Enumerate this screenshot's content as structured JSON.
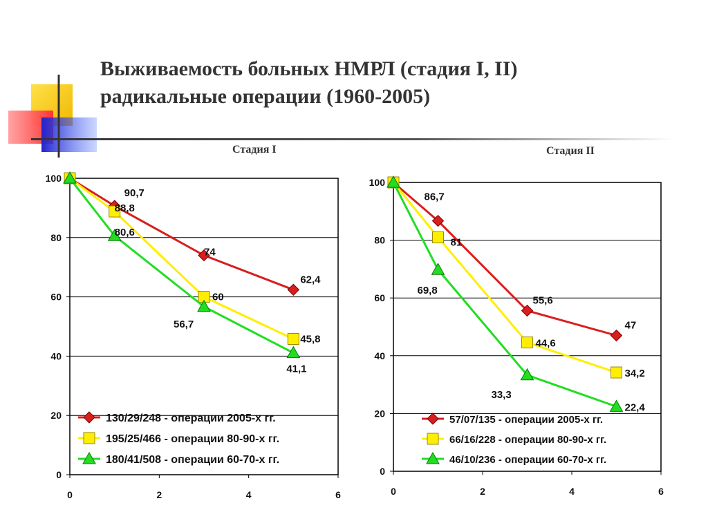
{
  "title": {
    "line1": "Выживаемость больных НМРЛ  (стадия I, II)",
    "line2": "радикальные операции (1960-2005)"
  },
  "colors": {
    "red": "#d81e1e",
    "yellow": "#ffee00",
    "green": "#22dd22",
    "logo_yellow": "#ffd700",
    "logo_red": "#ff3333",
    "logo_blue": "#3333dd"
  },
  "chart_data": [
    {
      "type": "line",
      "panel_label": "Стадия I",
      "xlim": [
        0,
        6
      ],
      "ylim": [
        0,
        100
      ],
      "x_ticks": [
        0,
        2,
        4,
        6
      ],
      "y_ticks": [
        0,
        20,
        40,
        60,
        80,
        100
      ],
      "grid": "horizontal",
      "legend_position": "bottom",
      "series": [
        {
          "name": "130/29/248 - операции 2005-х гг.",
          "color": "red",
          "marker": "diamond",
          "x": [
            0,
            1,
            3,
            5
          ],
          "y": [
            100,
            90.7,
            74,
            62.4
          ],
          "labels": [
            "",
            "90,7",
            "74",
            "62,4"
          ]
        },
        {
          "name": "195/25/466 - операции 80-90-х гг.",
          "color": "yellow",
          "marker": "square",
          "x": [
            0,
            1,
            3,
            5
          ],
          "y": [
            100,
            88.8,
            60,
            45.8
          ],
          "labels": [
            "",
            "88,8",
            "60",
            "45,8"
          ]
        },
        {
          "name": "180/41/508 - операции 60-70-х гг.",
          "color": "green",
          "marker": "triangle",
          "x": [
            0,
            1,
            3,
            5
          ],
          "y": [
            100,
            80.6,
            56.7,
            41.1
          ],
          "labels": [
            "",
            "80,6",
            "56,7",
            "41,1"
          ]
        }
      ]
    },
    {
      "type": "line",
      "panel_label": "Стадия II",
      "xlim": [
        0,
        6
      ],
      "ylim": [
        0,
        100
      ],
      "x_ticks": [
        0,
        2,
        4,
        6
      ],
      "y_ticks": [
        0,
        20,
        40,
        60,
        80,
        100
      ],
      "grid": "horizontal",
      "legend_position": "bottom",
      "series": [
        {
          "name": "57/07/135 - операции 2005-х гг.",
          "color": "red",
          "marker": "diamond",
          "x": [
            0,
            1,
            3,
            5
          ],
          "y": [
            100,
            86.7,
            55.6,
            47
          ],
          "labels": [
            "",
            "86,7",
            "55,6",
            "47"
          ]
        },
        {
          "name": "66/16/228 - операции 80-90-х гг.",
          "color": "yellow",
          "marker": "square",
          "x": [
            0,
            1,
            3,
            5
          ],
          "y": [
            100,
            81,
            44.6,
            34.2
          ],
          "labels": [
            "",
            "81",
            "44,6",
            "34,2"
          ]
        },
        {
          "name": "46/10/236 - операции 60-70-х гг.",
          "color": "green",
          "marker": "triangle",
          "x": [
            0,
            1,
            3,
            5
          ],
          "y": [
            100,
            69.8,
            33.3,
            22.4
          ],
          "labels": [
            "",
            "69,8",
            "33,3",
            "22,4"
          ]
        }
      ]
    }
  ]
}
